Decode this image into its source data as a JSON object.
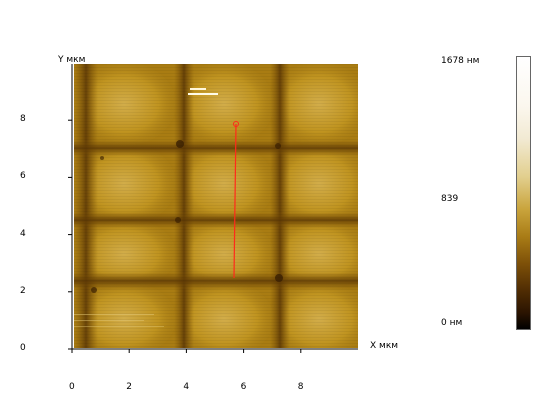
{
  "image": {
    "x_axis_label": "X мкм",
    "y_axis_label": "Y мкм",
    "x_ticks": [
      "0",
      "2",
      "4",
      "6",
      "8"
    ],
    "y_ticks": [
      "0",
      "2",
      "4",
      "6",
      "8"
    ],
    "x_range_um": [
      0,
      10
    ],
    "y_range_um": [
      0,
      10
    ],
    "profile_line_color": "#ff2a1a",
    "colors": {
      "height_low": "#6a3f05",
      "height_mid": "#b4880e",
      "height_high": "#e8d38a"
    }
  },
  "colorbar": {
    "max_label": "1678 нм",
    "mid_label": "839",
    "min_label": "0 нм"
  }
}
